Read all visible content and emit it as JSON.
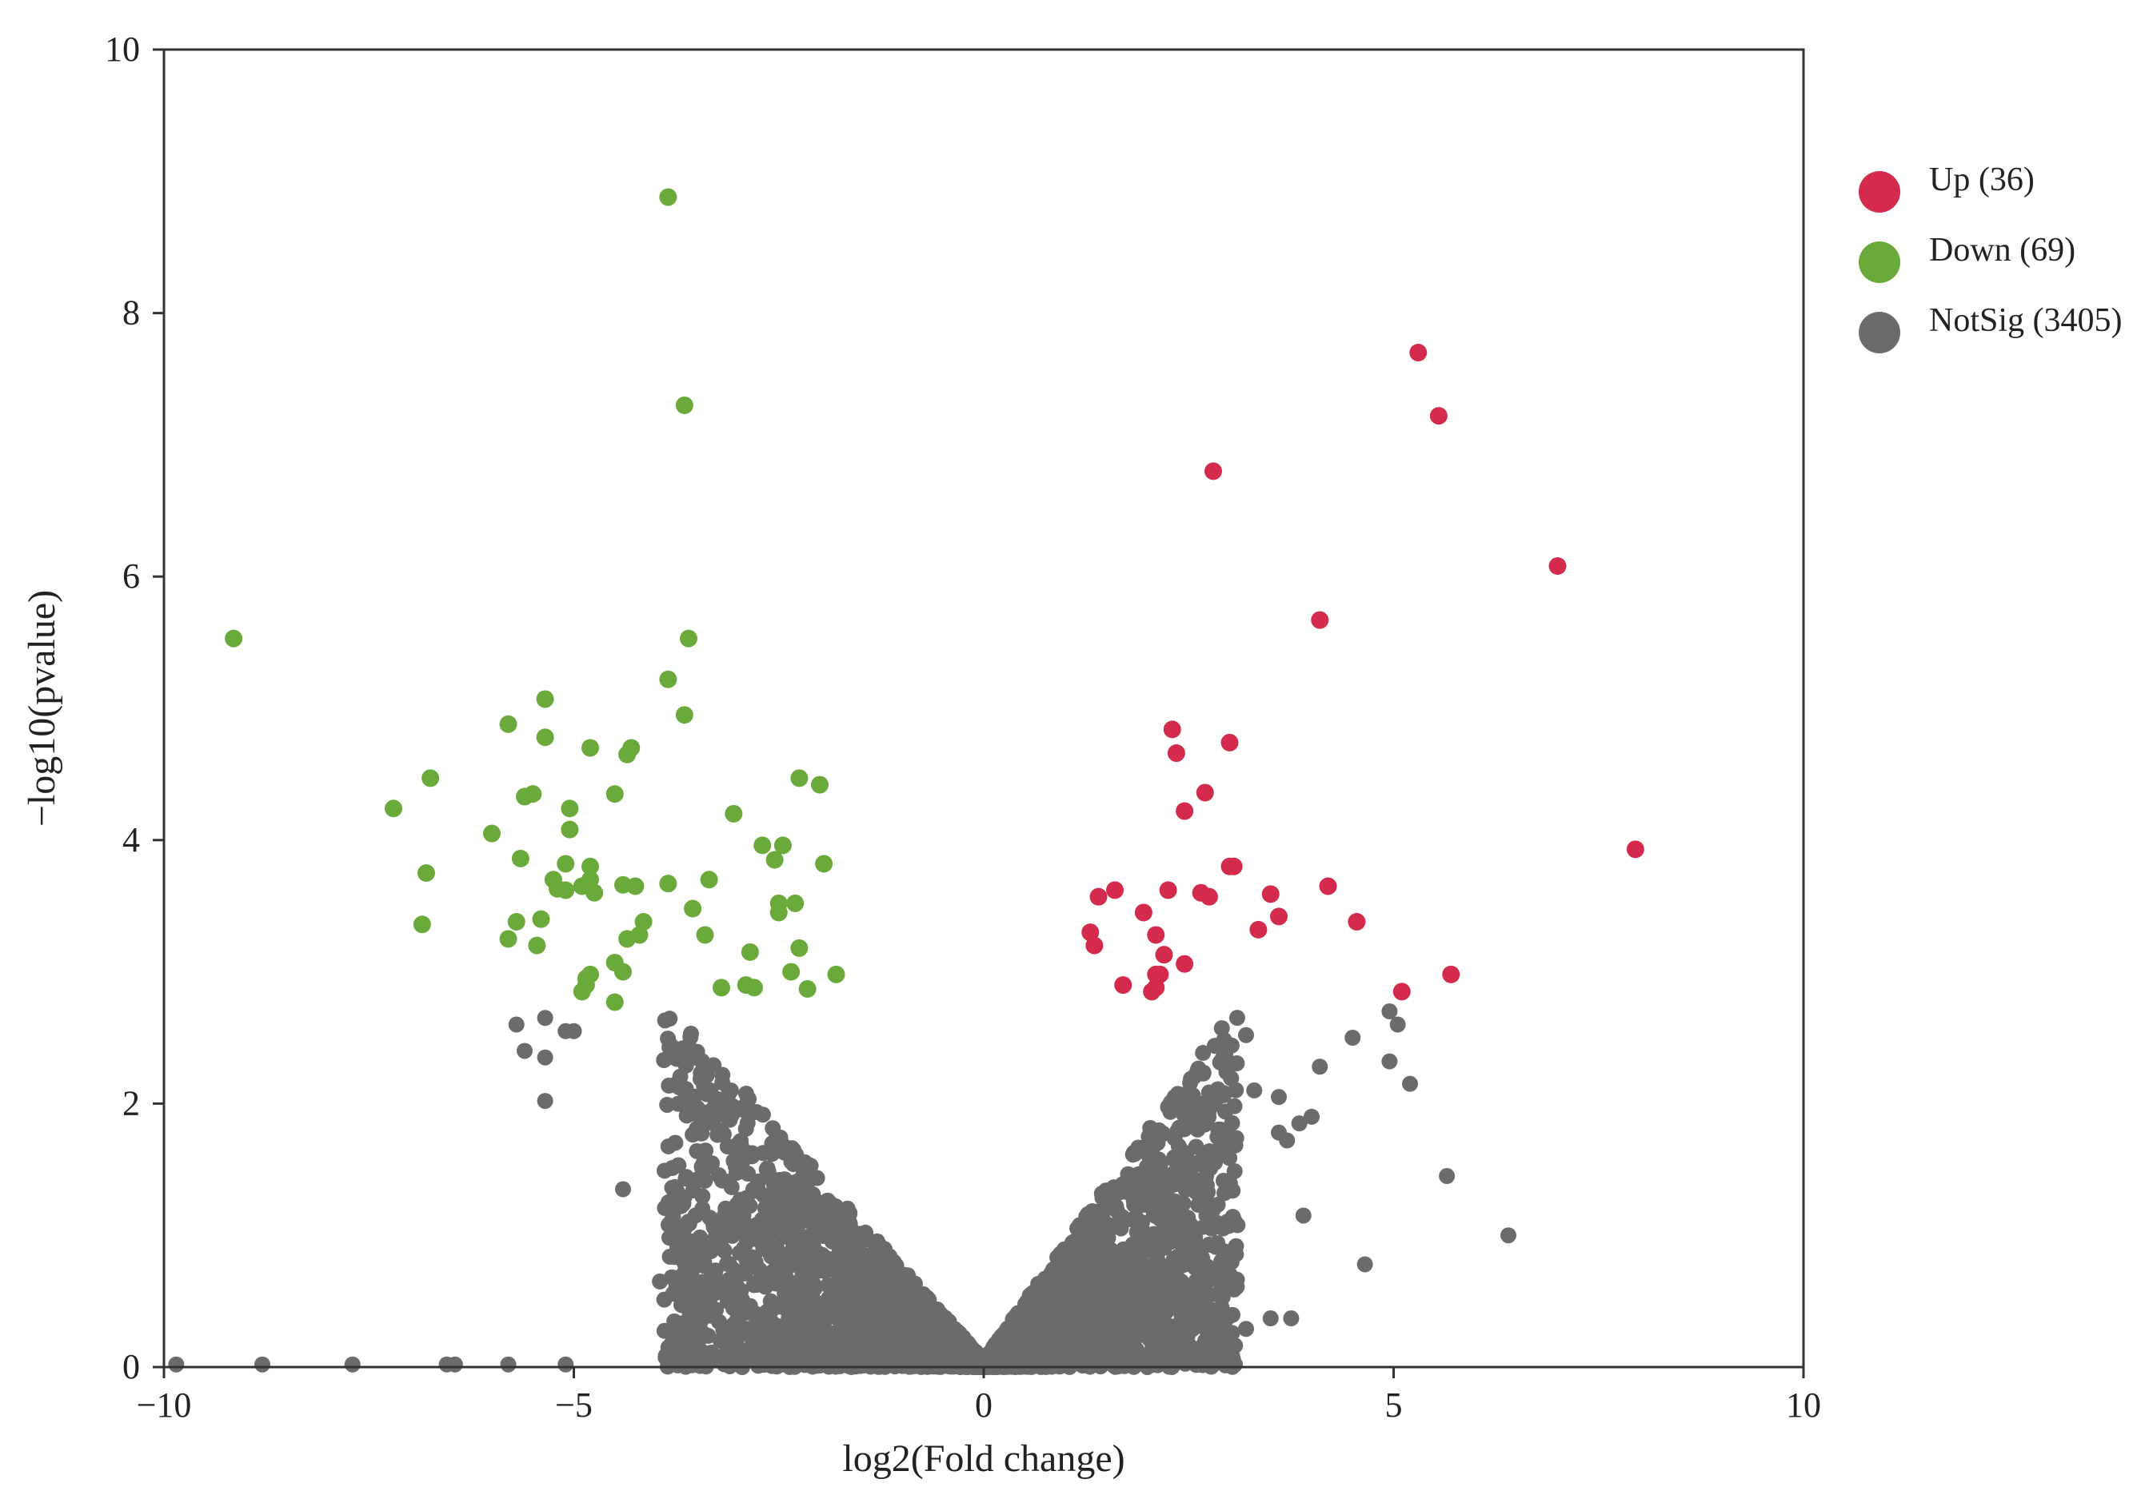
{
  "chart_data": {
    "type": "scatter",
    "xlabel": "log2(Fold change)",
    "ylabel": "−log10(pvalue)",
    "xlim": [
      -10,
      10
    ],
    "ylim": [
      0,
      10
    ],
    "x_ticks": [
      -10,
      -5,
      0,
      5,
      10
    ],
    "x_tick_labels": [
      "−10",
      "−5",
      "0",
      "5",
      "10"
    ],
    "y_ticks": [
      0,
      2,
      4,
      6,
      8,
      10
    ],
    "y_tick_labels": [
      "0",
      "2",
      "4",
      "6",
      "8",
      "10"
    ],
    "grid": false,
    "legend_position": "right",
    "legend": [
      {
        "label": "Up (36)",
        "series": "up",
        "color": "#d42a4b"
      },
      {
        "label": "Down (69)",
        "series": "down",
        "color": "#6aaa3a"
      },
      {
        "label": "NotSig (3405)",
        "series": "notsig",
        "color": "#6b6b6b"
      }
    ],
    "series": [
      {
        "key": "up",
        "color": "#d42a4b",
        "count": 36,
        "points": [
          [
            5.3,
            7.7
          ],
          [
            5.55,
            7.22
          ],
          [
            2.8,
            6.8
          ],
          [
            7.0,
            6.08
          ],
          [
            4.1,
            5.67
          ],
          [
            7.95,
            3.93
          ],
          [
            2.3,
            4.84
          ],
          [
            3.0,
            4.74
          ],
          [
            2.35,
            4.66
          ],
          [
            2.7,
            4.36
          ],
          [
            2.45,
            4.22
          ],
          [
            3.0,
            3.8
          ],
          [
            3.05,
            3.8
          ],
          [
            4.2,
            3.65
          ],
          [
            1.6,
            3.62
          ],
          [
            1.4,
            3.57
          ],
          [
            2.25,
            3.62
          ],
          [
            2.65,
            3.6
          ],
          [
            2.75,
            3.57
          ],
          [
            3.5,
            3.59
          ],
          [
            1.95,
            3.45
          ],
          [
            3.6,
            3.42
          ],
          [
            4.55,
            3.38
          ],
          [
            3.35,
            3.32
          ],
          [
            1.3,
            3.3
          ],
          [
            2.1,
            3.28
          ],
          [
            1.35,
            3.2
          ],
          [
            2.2,
            3.13
          ],
          [
            2.45,
            3.06
          ],
          [
            2.1,
            2.98
          ],
          [
            2.15,
            2.98
          ],
          [
            1.7,
            2.9
          ],
          [
            2.1,
            2.88
          ],
          [
            5.7,
            2.98
          ],
          [
            5.1,
            2.85
          ],
          [
            2.05,
            2.85
          ]
        ]
      },
      {
        "key": "down",
        "color": "#6aaa3a",
        "count": 69,
        "points": [
          [
            -3.85,
            8.88
          ],
          [
            -3.65,
            7.3
          ],
          [
            -9.15,
            5.53
          ],
          [
            -3.6,
            5.53
          ],
          [
            -3.85,
            5.22
          ],
          [
            -5.35,
            5.07
          ],
          [
            -3.65,
            4.95
          ],
          [
            -5.8,
            4.88
          ],
          [
            -5.35,
            4.78
          ],
          [
            -4.8,
            4.7
          ],
          [
            -4.3,
            4.7
          ],
          [
            -4.35,
            4.65
          ],
          [
            -6.75,
            4.47
          ],
          [
            -2.25,
            4.47
          ],
          [
            -2.0,
            4.42
          ],
          [
            -5.5,
            4.35
          ],
          [
            -5.6,
            4.33
          ],
          [
            -4.5,
            4.35
          ],
          [
            -7.2,
            4.24
          ],
          [
            -5.05,
            4.24
          ],
          [
            -3.05,
            4.2
          ],
          [
            -5.05,
            4.08
          ],
          [
            -6.0,
            4.05
          ],
          [
            -2.7,
            3.96
          ],
          [
            -2.45,
            3.96
          ],
          [
            -2.55,
            3.85
          ],
          [
            -1.95,
            3.82
          ],
          [
            -5.65,
            3.86
          ],
          [
            -5.1,
            3.82
          ],
          [
            -4.8,
            3.8
          ],
          [
            -6.8,
            3.75
          ],
          [
            -5.25,
            3.7
          ],
          [
            -3.35,
            3.7
          ],
          [
            -3.85,
            3.67
          ],
          [
            -4.8,
            3.7
          ],
          [
            -4.4,
            3.66
          ],
          [
            -4.25,
            3.65
          ],
          [
            -4.9,
            3.65
          ],
          [
            -5.2,
            3.63
          ],
          [
            -5.1,
            3.62
          ],
          [
            -4.75,
            3.6
          ],
          [
            -2.5,
            3.52
          ],
          [
            -2.3,
            3.52
          ],
          [
            -3.55,
            3.48
          ],
          [
            -2.5,
            3.45
          ],
          [
            -5.7,
            3.38
          ],
          [
            -5.4,
            3.4
          ],
          [
            -6.85,
            3.36
          ],
          [
            -4.15,
            3.38
          ],
          [
            -3.4,
            3.28
          ],
          [
            -5.8,
            3.25
          ],
          [
            -4.35,
            3.25
          ],
          [
            -4.2,
            3.28
          ],
          [
            -5.45,
            3.2
          ],
          [
            -2.25,
            3.18
          ],
          [
            -2.85,
            3.15
          ],
          [
            -4.5,
            3.07
          ],
          [
            -4.4,
            3.0
          ],
          [
            -4.8,
            2.98
          ],
          [
            -4.85,
            2.95
          ],
          [
            -2.35,
            3.0
          ],
          [
            -1.8,
            2.98
          ],
          [
            -2.9,
            2.9
          ],
          [
            -2.8,
            2.88
          ],
          [
            -4.85,
            2.9
          ],
          [
            -4.9,
            2.85
          ],
          [
            -3.2,
            2.88
          ],
          [
            -2.15,
            2.87
          ],
          [
            -4.5,
            2.77
          ]
        ]
      },
      {
        "key": "notsig",
        "color": "#6b6b6b",
        "count": 3405,
        "outliers": [
          [
            -9.85,
            0.02
          ],
          [
            -8.8,
            0.02
          ],
          [
            -7.7,
            0.02
          ],
          [
            -6.55,
            0.02
          ],
          [
            -6.45,
            0.02
          ],
          [
            -5.8,
            0.02
          ],
          [
            -5.1,
            0.02
          ],
          [
            -5.7,
            2.6
          ],
          [
            -5.6,
            2.4
          ],
          [
            -5.35,
            2.65
          ],
          [
            -5.35,
            2.02
          ],
          [
            -5.1,
            2.55
          ],
          [
            -5.0,
            2.55
          ],
          [
            -5.35,
            2.35
          ],
          [
            4.95,
            2.7
          ],
          [
            5.05,
            2.6
          ],
          [
            5.2,
            2.15
          ],
          [
            5.65,
            1.45
          ],
          [
            6.4,
            1.0
          ],
          [
            4.95,
            2.32
          ],
          [
            4.65,
            0.78
          ],
          [
            4.5,
            2.5
          ],
          [
            4.1,
            2.28
          ],
          [
            3.9,
            1.15
          ],
          [
            3.75,
            0.37
          ],
          [
            3.5,
            0.37
          ],
          [
            3.2,
            0.29
          ],
          [
            2.75,
            0.25
          ],
          [
            2.45,
            0.22
          ],
          [
            3.85,
            1.85
          ],
          [
            4.0,
            1.9
          ],
          [
            3.6,
            2.05
          ],
          [
            3.3,
            2.1
          ],
          [
            3.2,
            2.52
          ],
          [
            3.6,
            1.78
          ],
          [
            3.7,
            1.72
          ],
          [
            -4.4,
            1.35
          ],
          [
            -3.95,
            0.65
          ],
          [
            -3.45,
            0.35
          ]
        ]
      }
    ]
  }
}
